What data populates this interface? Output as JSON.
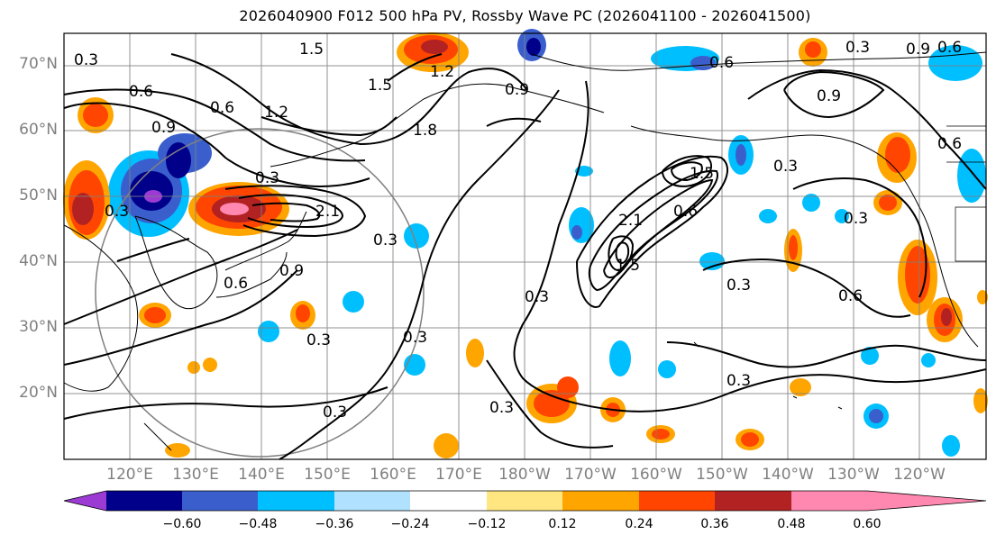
{
  "title": "2026040900 F012 500 hPa PV, Rossby Wave PC (2026041100 - 2026041500)",
  "lat_labels": [
    "70°N",
    "60°N",
    "50°N",
    "40°N",
    "30°N",
    "20°N"
  ],
  "lon_labels": [
    "120°E",
    "130°E",
    "140°E",
    "150°E",
    "160°E",
    "170°E",
    "180°W",
    "170°W",
    "160°W",
    "150°W",
    "140°W",
    "130°W",
    "120°W"
  ],
  "colorbar": {
    "tick_labels": [
      "−0.60",
      "−0.48",
      "−0.36",
      "−0.24",
      "−0.12",
      "0.12",
      "0.24",
      "0.36",
      "0.48",
      "0.60"
    ],
    "colors": [
      "#9b3bd4",
      "#00008b",
      "#3a5fcd",
      "#00bfff",
      "#b0e2ff",
      "#ffffff",
      "#ffe680",
      "#ffa500",
      "#ff4500",
      "#b22222",
      "#ff88b0"
    ]
  },
  "contour_labels": [
    "0.3",
    "0.6",
    "0.9",
    "1.2",
    "1.5",
    "1.8",
    "2.1"
  ],
  "colors": {
    "map_lines": "#000000",
    "grid": "#808080",
    "axis_labels": "#808080"
  }
}
